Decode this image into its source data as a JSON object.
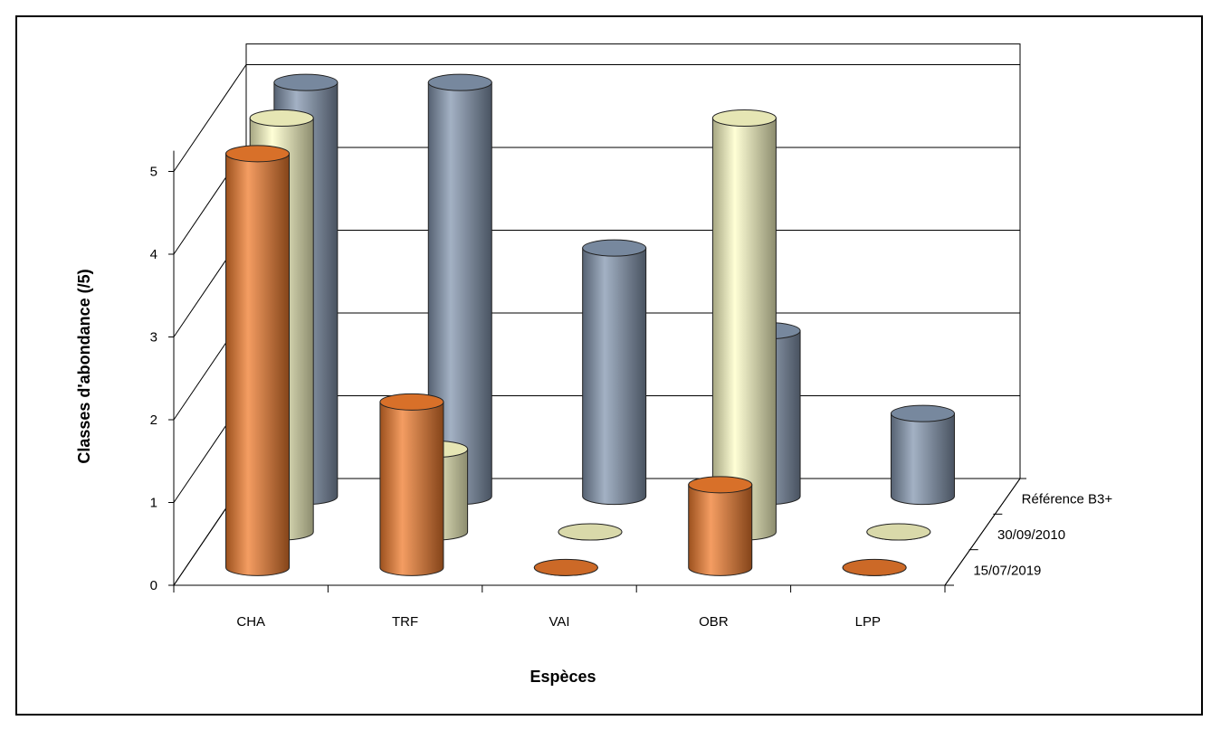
{
  "chart_data": {
    "type": "bar",
    "style": "3d-cylinder",
    "categories": [
      "CHA",
      "TRF",
      "VAI",
      "OBR",
      "LPP"
    ],
    "series": [
      {
        "name": "15/07/2019",
        "values": [
          5,
          2,
          0,
          1,
          0
        ],
        "color": "#F07C2E"
      },
      {
        "name": "30/09/2010",
        "values": [
          5,
          1,
          0,
          5,
          0
        ],
        "color": "#FFFFC8"
      },
      {
        "name": "Référence B3+",
        "values": [
          5,
          5,
          3,
          2,
          1
        ],
        "color": "#8497B0"
      }
    ],
    "xlabel": "Espèces",
    "ylabel": "Classes d'abondance (/5)",
    "ylim": [
      0,
      5
    ],
    "yticks": [
      "0",
      "1",
      "2",
      "3",
      "4",
      "5"
    ],
    "grid": true,
    "legend": "depth-axis"
  }
}
